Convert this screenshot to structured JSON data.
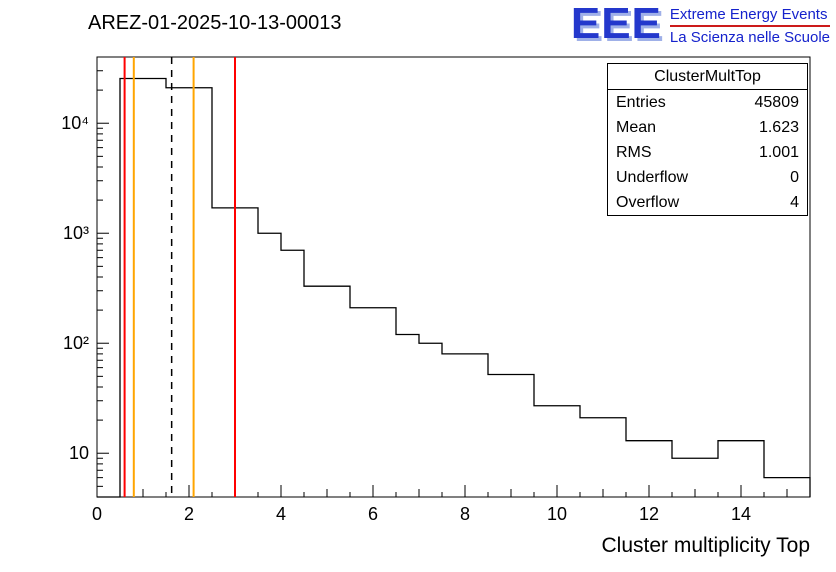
{
  "header": {
    "title": "AREZ-01-2025-10-13-00013"
  },
  "logo": {
    "letters": "EEE",
    "line1": "Extreme Energy Events",
    "line2": "La Scienza nelle Scuole",
    "blue": "#1522cc",
    "red": "#cc1a1a"
  },
  "stats": {
    "title": "ClusterMultTop",
    "rows": [
      {
        "label": "Entries",
        "value": "45809"
      },
      {
        "label": "Mean",
        "value": "1.623"
      },
      {
        "label": "RMS",
        "value": "1.001"
      },
      {
        "label": "Underflow",
        "value": "0"
      },
      {
        "label": "Overflow",
        "value": "4"
      }
    ]
  },
  "chart_data": {
    "type": "bar",
    "title": "AREZ-01-2025-10-13-00013",
    "xlabel": "Cluster multiplicity Top",
    "ylabel": "",
    "yscale": "log",
    "grid": false,
    "legend": "none",
    "xlim": [
      0,
      15.5
    ],
    "ylim": [
      4,
      40000
    ],
    "line_color": "#000000",
    "x_start": 0,
    "bin_width": 0.5,
    "counts": [
      0,
      25500,
      25500,
      21000,
      21000,
      1700,
      1700,
      1000,
      700,
      330,
      330,
      210,
      210,
      120,
      100,
      80,
      80,
      52,
      52,
      27,
      27,
      21,
      21,
      13,
      13,
      9,
      9,
      13,
      13,
      6,
      6
    ],
    "xticks": [
      {
        "v": 0,
        "label": "0"
      },
      {
        "v": 2,
        "label": "2"
      },
      {
        "v": 4,
        "label": "4"
      },
      {
        "v": 6,
        "label": "6"
      },
      {
        "v": 8,
        "label": "8"
      },
      {
        "v": 10,
        "label": "10"
      },
      {
        "v": 12,
        "label": "12"
      },
      {
        "v": 14,
        "label": "14"
      }
    ],
    "yticks": [
      {
        "v": 10,
        "label": "10"
      },
      {
        "v": 100,
        "label": "10²"
      },
      {
        "v": 1000,
        "label": "10³"
      },
      {
        "v": 10000,
        "label": "10⁴"
      }
    ],
    "vlines": [
      {
        "x": 0.6,
        "color": "#ff0000",
        "dash": false
      },
      {
        "x": 0.8,
        "color": "#ffa500",
        "dash": false
      },
      {
        "x": 1.623,
        "color": "#000000",
        "dash": true
      },
      {
        "x": 2.1,
        "color": "#ffa500",
        "dash": false
      },
      {
        "x": 3.0,
        "color": "#ff0000",
        "dash": false
      }
    ]
  }
}
